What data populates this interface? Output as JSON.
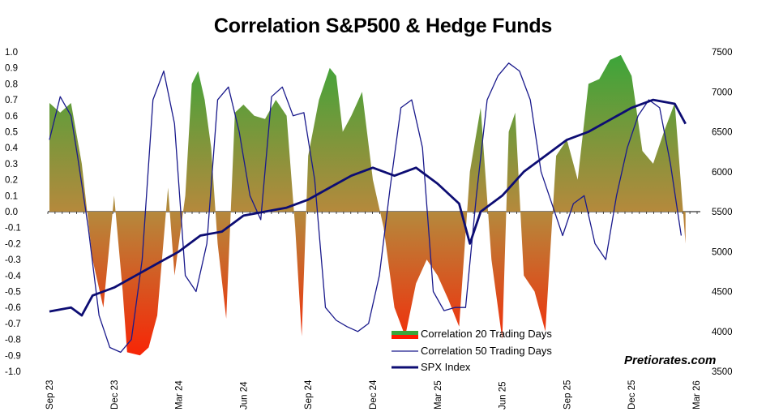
{
  "chart_data": {
    "type": "area",
    "title": "Correlation S&P500 & Hedge Funds",
    "watermark": "Pretiorates.com",
    "x_ticks": [
      "Sep 23",
      "Dec 23",
      "Mar 24",
      "Jun 24",
      "Sep 24",
      "Dec 24",
      "Mar 25",
      "Jun 25",
      "Sep 25",
      "Dec 25",
      "Mar 26"
    ],
    "y_left": {
      "min": -1.0,
      "max": 1.0,
      "ticks": [
        "1.0",
        "0.9",
        "0.8",
        "0.7",
        "0.6",
        "0.5",
        "0.4",
        "0.3",
        "0.2",
        "0.1",
        "0.0",
        "-0.1",
        "-0.2",
        "-0.3",
        "-0.4",
        "-0.5",
        "-0.6",
        "-0.7",
        "-0.8",
        "-0.9",
        "-1.0"
      ]
    },
    "y_right": {
      "min": 3500,
      "max": 7500,
      "ticks": [
        "7500",
        "7000",
        "6500",
        "6000",
        "5500",
        "5000",
        "4500",
        "4000",
        "3500"
      ]
    },
    "colors": {
      "positive": "#3aa63a",
      "neutral": "#b5893c",
      "negative": "#ff1a00",
      "corr50_line": "#1a1a8c",
      "spx_line": "#0d0d73"
    },
    "series": [
      {
        "name": "Correlation 20 Trading Days",
        "style": "area",
        "axis": "left",
        "t": [
          0,
          0.5,
          1,
          1.5,
          2,
          2.5,
          3,
          3.4,
          3.6,
          4.2,
          4.6,
          5,
          5.5,
          5.8,
          6,
          6.3,
          6.6,
          6.9,
          7.2,
          7.5,
          7.8,
          8.2,
          8.6,
          9,
          9.5,
          10,
          10.5,
          11,
          11.4,
          11.7,
          12,
          12.5,
          13,
          13.3,
          13.6,
          14,
          14.5,
          15,
          15.5,
          16,
          16.5,
          17,
          17.5,
          18,
          18.5,
          19,
          19.5,
          20,
          20.5,
          21,
          21.3,
          21.6,
          22,
          22.5,
          23,
          23.5,
          24,
          24.5,
          25,
          25.5,
          26,
          26.5,
          27,
          27.5,
          28,
          28.5,
          29,
          29.5
        ],
        "values": [
          0.68,
          0.62,
          0.68,
          0.3,
          -0.3,
          -0.6,
          0.1,
          -0.5,
          -0.88,
          -0.9,
          -0.85,
          -0.65,
          0.15,
          -0.4,
          -0.2,
          0.1,
          0.8,
          0.88,
          0.7,
          0.4,
          -0.2,
          -0.67,
          0.62,
          0.67,
          0.6,
          0.58,
          0.7,
          0.6,
          -0.1,
          -0.78,
          0.35,
          0.7,
          0.9,
          0.85,
          0.5,
          0.6,
          0.75,
          0.2,
          -0.1,
          -0.6,
          -0.78,
          -0.45,
          -0.3,
          -0.4,
          -0.55,
          -0.72,
          0.25,
          0.65,
          -0.3,
          -0.8,
          0.5,
          0.62,
          -0.4,
          -0.5,
          -0.75,
          0.35,
          0.45,
          0.2,
          0.8,
          0.83,
          0.95,
          0.98,
          0.85,
          0.38,
          0.3,
          0.5,
          0.68,
          -0.2
        ],
        "note": "x values are approximate months elapsed since the Sep 23 tick"
      },
      {
        "name": "Correlation 50 Trading Days",
        "style": "thin-line",
        "axis": "left",
        "t": [
          0,
          0.5,
          1,
          1.3,
          1.8,
          2.3,
          2.8,
          3.3,
          3.8,
          4.3,
          4.8,
          5.3,
          5.8,
          6.3,
          6.8,
          7.3,
          7.8,
          8.3,
          8.8,
          9.3,
          9.8,
          10.3,
          10.8,
          11.3,
          11.8,
          12.3,
          12.8,
          13.3,
          13.8,
          14.3,
          14.8,
          15.3,
          15.8,
          16.3,
          16.8,
          17.3,
          17.8,
          18.3,
          18.8,
          19.3,
          19.8,
          20.3,
          20.8,
          21.3,
          21.8,
          22.3,
          22.8,
          23.3,
          23.8,
          24.3,
          24.8,
          25.3,
          25.8,
          26.3,
          26.8,
          27.3,
          27.8,
          28.3,
          28.8,
          29.3
        ],
        "values": [
          0.45,
          0.72,
          0.6,
          0.35,
          -0.1,
          -0.65,
          -0.85,
          -0.88,
          -0.8,
          -0.3,
          0.7,
          0.88,
          0.55,
          -0.4,
          -0.5,
          -0.2,
          0.7,
          0.78,
          0.5,
          0.1,
          -0.05,
          0.72,
          0.78,
          0.6,
          0.62,
          0.2,
          -0.6,
          -0.68,
          -0.72,
          -0.75,
          -0.7,
          -0.4,
          0.15,
          0.65,
          0.7,
          0.4,
          -0.5,
          -0.62,
          -0.6,
          -0.6,
          0.1,
          0.7,
          0.85,
          0.93,
          0.88,
          0.7,
          0.25,
          0.05,
          -0.15,
          0.05,
          0.1,
          -0.2,
          -0.3,
          0.1,
          0.4,
          0.6,
          0.7,
          0.65,
          0.3,
          -0.15
        ],
        "note": "x values are approximate months elapsed since the Sep 23 tick"
      },
      {
        "name": "SPX Index",
        "style": "thick-line",
        "axis": "right",
        "t": [
          0,
          1,
          1.5,
          2,
          3,
          4,
          5,
          6,
          7,
          8,
          9,
          10,
          11,
          12,
          13,
          14,
          15,
          16,
          17,
          18,
          19,
          19.5,
          20,
          21,
          22,
          23,
          24,
          25,
          26,
          27,
          28,
          29,
          29.5
        ],
        "values": [
          4250,
          4300,
          4200,
          4450,
          4550,
          4700,
          4850,
          5000,
          5200,
          5250,
          5450,
          5500,
          5550,
          5650,
          5800,
          5950,
          6050,
          5950,
          6050,
          5850,
          5600,
          5100,
          5500,
          5700,
          6000,
          6200,
          6400,
          6500,
          6650,
          6800,
          6900,
          6850,
          6600
        ],
        "note": "x values are approximate months elapsed since the Sep 23 tick"
      }
    ]
  }
}
